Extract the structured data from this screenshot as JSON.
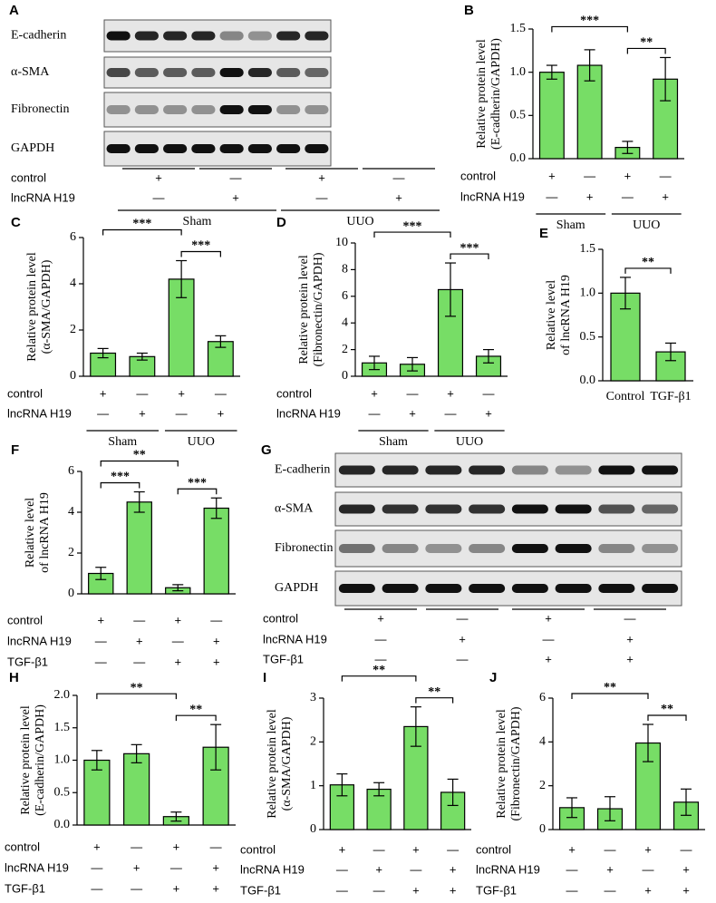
{
  "chart_data": [
    {
      "type": "blot",
      "panel": "A",
      "proteins": [
        "E-cadherin",
        "α-SMA",
        "Fibronectin",
        "GAPDH"
      ],
      "conditions": [
        {
          "name": "control",
          "marks": [
            "+",
            "—",
            "+",
            "—"
          ]
        },
        {
          "name": "lncRNA H19",
          "marks": [
            "—",
            "+",
            "—",
            "+"
          ]
        }
      ],
      "groups": [
        "Sham",
        "UUO"
      ]
    },
    {
      "type": "bar",
      "panel": "B",
      "ylabel": [
        "Relative protein level",
        "(E-cadherin/GAPDH)"
      ],
      "color": "#77dd66",
      "values": [
        1.0,
        1.08,
        0.13,
        0.92
      ],
      "errors": [
        0.08,
        0.18,
        0.07,
        0.25
      ],
      "ylim": [
        0,
        1.5
      ],
      "yticks": [
        {
          "value": 0,
          "label": "0.0"
        },
        0.5,
        {
          "value": 1,
          "label": "1.0"
        },
        1.5
      ],
      "brackets": [
        {
          "label": "**",
          "bars": [
            2,
            3
          ]
        },
        {
          "label": "***",
          "bars": [
            0,
            2
          ]
        }
      ],
      "conditions": [
        {
          "name": "control",
          "marks": [
            "+",
            "—",
            "+",
            "—"
          ]
        },
        {
          "name": "lncRNA H19",
          "marks": [
            "—",
            "+",
            "—",
            "+"
          ]
        }
      ],
      "groups": [
        "Sham",
        "UUO"
      ]
    },
    {
      "type": "bar",
      "panel": "C",
      "ylabel": [
        "Relative protein level",
        "(α-SMA/GAPDH)"
      ],
      "color": "#77dd66",
      "values": [
        1.0,
        0.85,
        4.2,
        1.5
      ],
      "errors": [
        0.2,
        0.15,
        0.8,
        0.25
      ],
      "ylim": [
        0,
        6
      ],
      "yticks": [
        0,
        2,
        4,
        6
      ],
      "brackets": [
        {
          "label": "***",
          "bars": [
            2,
            3
          ]
        },
        {
          "label": "***",
          "bars": [
            0,
            2
          ]
        }
      ],
      "conditions": [
        {
          "name": "control",
          "marks": [
            "+",
            "—",
            "+",
            "—"
          ]
        },
        {
          "name": "lncRNA H19",
          "marks": [
            "—",
            "+",
            "—",
            "+"
          ]
        }
      ],
      "groups": [
        "Sham",
        "UUO"
      ]
    },
    {
      "type": "bar",
      "panel": "D",
      "ylabel": [
        "Relative protein level",
        "(Fibronectin/GAPDH)"
      ],
      "color": "#77dd66",
      "values": [
        1.0,
        0.9,
        6.5,
        1.5
      ],
      "errors": [
        0.5,
        0.5,
        2.0,
        0.5
      ],
      "ylim": [
        0,
        10
      ],
      "yticks": [
        0,
        2,
        4,
        6,
        8,
        10
      ],
      "brackets": [
        {
          "label": "***",
          "bars": [
            2,
            3
          ]
        },
        {
          "label": "***",
          "bars": [
            0,
            2
          ]
        }
      ],
      "conditions": [
        {
          "name": "control",
          "marks": [
            "+",
            "—",
            "+",
            "—"
          ]
        },
        {
          "name": "lncRNA H19",
          "marks": [
            "—",
            "+",
            "—",
            "+"
          ]
        }
      ],
      "groups": [
        "Sham",
        "UUO"
      ]
    },
    {
      "type": "bar",
      "panel": "E",
      "ylabel": [
        "Relative level",
        "of lncRNA H19"
      ],
      "color": "#77dd66",
      "categories": [
        "Control",
        "TGF-β1"
      ],
      "values": [
        1.0,
        0.33
      ],
      "errors": [
        0.18,
        0.1
      ],
      "ylim": [
        0,
        1.5
      ],
      "yticks": [
        {
          "value": 0,
          "label": "0.0"
        },
        0.5,
        {
          "value": 1,
          "label": "1.0"
        },
        1.5
      ],
      "brackets": [
        {
          "label": "**",
          "bars": [
            0,
            1
          ]
        }
      ]
    },
    {
      "type": "bar",
      "panel": "F",
      "ylabel": [
        "Relative level",
        "of lncRNA H19"
      ],
      "color": "#77dd66",
      "values": [
        1.0,
        4.5,
        0.3,
        4.2
      ],
      "errors": [
        0.3,
        0.5,
        0.15,
        0.5
      ],
      "ylim": [
        0,
        6
      ],
      "yticks": [
        0,
        2,
        4,
        6
      ],
      "brackets": [
        {
          "label": "***",
          "bars": [
            0,
            1
          ]
        },
        {
          "label": "***",
          "bars": [
            2,
            3
          ]
        },
        {
          "label": "**",
          "bars": [
            0,
            2
          ]
        }
      ],
      "conditions": [
        {
          "name": "control",
          "marks": [
            "+",
            "—",
            "+",
            "—"
          ]
        },
        {
          "name": "lncRNA H19",
          "marks": [
            "—",
            "+",
            "—",
            "+"
          ]
        },
        {
          "name": "TGF-β1",
          "marks": [
            "—",
            "—",
            "+",
            "+"
          ]
        }
      ]
    },
    {
      "type": "blot",
      "panel": "G",
      "proteins": [
        "E-cadherin",
        "α-SMA",
        "Fibronectin",
        "GAPDH"
      ],
      "conditions": [
        {
          "name": "control",
          "marks": [
            "+",
            "—",
            "+",
            "—"
          ]
        },
        {
          "name": "lncRNA H19",
          "marks": [
            "—",
            "+",
            "—",
            "+"
          ]
        },
        {
          "name": "TGF-β1",
          "marks": [
            "—",
            "—",
            "+",
            "+"
          ]
        }
      ]
    },
    {
      "type": "bar",
      "panel": "H",
      "ylabel": [
        "Relative protein level",
        "(E-cadherin/GAPDH)"
      ],
      "color": "#77dd66",
      "values": [
        1.0,
        1.1,
        0.13,
        1.2
      ],
      "errors": [
        0.15,
        0.14,
        0.07,
        0.35
      ],
      "ylim": [
        0,
        2
      ],
      "yticks": [
        {
          "value": 0,
          "label": "0.0"
        },
        0.5,
        {
          "value": 1,
          "label": "1.0"
        },
        1.5,
        {
          "value": 2,
          "label": "2.0"
        }
      ],
      "brackets": [
        {
          "label": "**",
          "bars": [
            2,
            3
          ]
        },
        {
          "label": "**",
          "bars": [
            0,
            2
          ]
        }
      ],
      "conditions": [
        {
          "name": "control",
          "marks": [
            "+",
            "—",
            "+",
            "—"
          ]
        },
        {
          "name": "lncRNA H19",
          "marks": [
            "—",
            "+",
            "—",
            "+"
          ]
        },
        {
          "name": "TGF-β1",
          "marks": [
            "—",
            "—",
            "+",
            "+"
          ]
        }
      ]
    },
    {
      "type": "bar",
      "panel": "I",
      "ylabel": [
        "Relative protein level",
        "(α-SMA/GAPDH)"
      ],
      "color": "#77dd66",
      "values": [
        1.02,
        0.92,
        2.35,
        0.85
      ],
      "errors": [
        0.25,
        0.15,
        0.45,
        0.3
      ],
      "ylim": [
        0,
        3
      ],
      "yticks": [
        0,
        1,
        2,
        3
      ],
      "brackets": [
        {
          "label": "**",
          "bars": [
            2,
            3
          ]
        },
        {
          "label": "**",
          "bars": [
            0,
            2
          ]
        }
      ],
      "conditions": [
        {
          "name": "control",
          "marks": [
            "+",
            "—",
            "+",
            "—"
          ]
        },
        {
          "name": "lncRNA H19",
          "marks": [
            "—",
            "+",
            "—",
            "+"
          ]
        },
        {
          "name": "TGF-β1",
          "marks": [
            "—",
            "—",
            "+",
            "+"
          ]
        }
      ]
    },
    {
      "type": "bar",
      "panel": "J",
      "ylabel": [
        "Relative protein level",
        "(Fibronectin/GAPDH)"
      ],
      "color": "#77dd66",
      "values": [
        1.0,
        0.95,
        3.95,
        1.25
      ],
      "errors": [
        0.45,
        0.55,
        0.85,
        0.6
      ],
      "ylim": [
        0,
        6
      ],
      "yticks": [
        0,
        2,
        4,
        6
      ],
      "brackets": [
        {
          "label": "**",
          "bars": [
            2,
            3
          ]
        },
        {
          "label": "**",
          "bars": [
            0,
            2
          ]
        }
      ],
      "conditions": [
        {
          "name": "control",
          "marks": [
            "+",
            "—",
            "+",
            "—"
          ]
        },
        {
          "name": "lncRNA H19",
          "marks": [
            "—",
            "+",
            "—",
            "+"
          ]
        },
        {
          "name": "TGF-β1",
          "marks": [
            "—",
            "—",
            "+",
            "+"
          ]
        }
      ]
    }
  ]
}
